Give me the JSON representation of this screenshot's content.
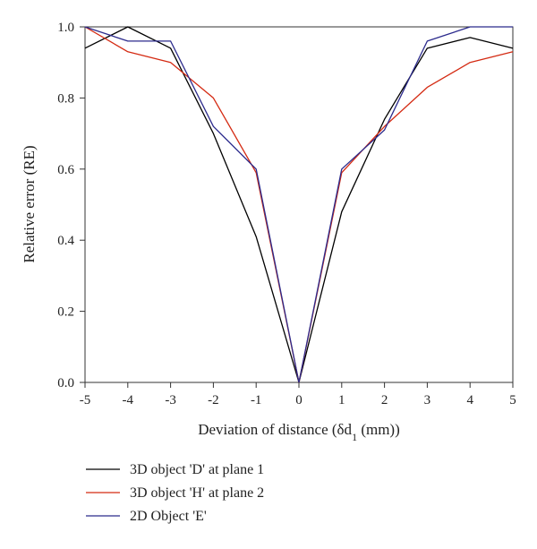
{
  "chart_data": {
    "type": "line",
    "xlabel_main": "Deviation of distance (δd",
    "xlabel_sub": "1",
    "xlabel_tail": " (mm))",
    "ylabel": "Relative error (RE)",
    "xlim": [
      -5,
      5
    ],
    "ylim": [
      0,
      1
    ],
    "x_ticks": [
      -5,
      -4,
      -3,
      -2,
      -1,
      0,
      1,
      2,
      3,
      4,
      5
    ],
    "y_ticks": [
      "0.0",
      "0.2",
      "0.4",
      "0.6",
      "0.8",
      "1.0"
    ],
    "x": [
      -5,
      -4,
      -3,
      -2,
      -1,
      0,
      1,
      2,
      3,
      4,
      5
    ],
    "series": [
      {
        "name": "3D object 'D' at plane 1",
        "color": "#000000",
        "values": [
          0.94,
          1.0,
          0.94,
          0.7,
          0.41,
          0.0,
          0.48,
          0.74,
          0.94,
          0.97,
          0.94
        ]
      },
      {
        "name": "3D object 'H' at plane 2",
        "color": "#d42a12",
        "values": [
          1.0,
          0.93,
          0.9,
          0.8,
          0.59,
          0.0,
          0.59,
          0.72,
          0.83,
          0.9,
          0.93
        ]
      },
      {
        "name": "2D Object 'E'",
        "color": "#2b2a8c",
        "values": [
          1.0,
          0.96,
          0.96,
          0.72,
          0.6,
          0.0,
          0.6,
          0.71,
          0.96,
          1.0,
          1.0
        ]
      }
    ],
    "grid": false,
    "legend_position": "bottom-left"
  }
}
